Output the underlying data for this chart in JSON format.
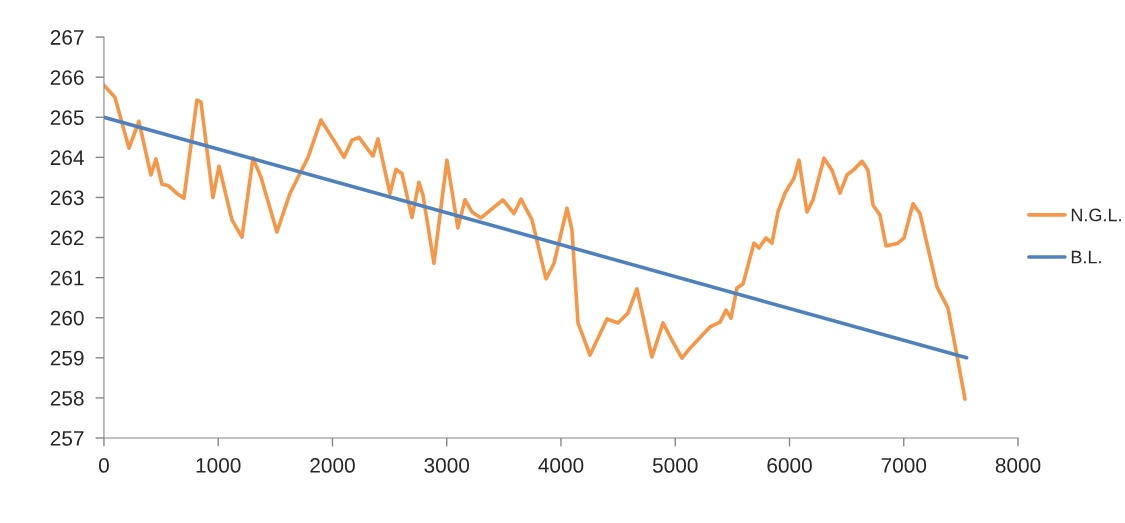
{
  "chart_data": {
    "type": "line",
    "xlim": [
      0,
      8000
    ],
    "ylim": [
      257,
      267
    ],
    "xticks": [
      0,
      1000,
      2000,
      3000,
      4000,
      5000,
      6000,
      7000,
      8000
    ],
    "yticks": [
      257,
      258,
      259,
      260,
      261,
      262,
      263,
      264,
      265,
      266,
      267
    ],
    "grid": false,
    "legend": "right",
    "marker": "none",
    "line_style": "solid",
    "series": [
      {
        "name": "N.G.L.",
        "color": "#f79646",
        "x": [
          0,
          96,
          219,
          306,
          411,
          455,
          508,
          560,
          639,
          700,
          814,
          849,
          954,
          1007,
          1120,
          1208,
          1304,
          1374,
          1514,
          1628,
          1786,
          1899,
          2022,
          2101,
          2171,
          2232,
          2354,
          2398,
          2503,
          2556,
          2608,
          2696,
          2757,
          2792,
          2888,
          3002,
          3098,
          3160,
          3221,
          3300,
          3492,
          3589,
          3650,
          3746,
          3869,
          3939,
          4053,
          4096,
          4149,
          4254,
          4403,
          4499,
          4587,
          4665,
          4796,
          4893,
          4980,
          5059,
          5129,
          5304,
          5392,
          5444,
          5488,
          5540,
          5593,
          5689,
          5733,
          5794,
          5847,
          5899,
          5961,
          6039,
          6083,
          6153,
          6206,
          6302,
          6372,
          6442,
          6503,
          6565,
          6635,
          6687,
          6731,
          6792,
          6845,
          6950,
          7002,
          7081,
          7142,
          7291,
          7387,
          7457,
          7536
        ],
        "values": [
          265.8,
          265.5,
          264.23,
          264.9,
          263.56,
          263.96,
          263.33,
          263.3,
          263.1,
          262.98,
          265.43,
          265.38,
          263.0,
          263.78,
          262.44,
          262.01,
          263.98,
          263.51,
          262.14,
          263.1,
          264.0,
          264.93,
          264.38,
          264.0,
          264.43,
          264.5,
          264.03,
          264.46,
          263.1,
          263.7,
          263.6,
          262.5,
          263.38,
          263.06,
          261.36,
          263.93,
          262.24,
          262.94,
          262.64,
          262.49,
          262.94,
          262.6,
          262.96,
          262.44,
          260.97,
          261.36,
          262.73,
          262.19,
          259.87,
          259.07,
          259.97,
          259.87,
          260.12,
          260.72,
          259.02,
          259.87,
          259.39,
          258.99,
          259.24,
          259.77,
          259.89,
          260.19,
          259.99,
          260.74,
          260.84,
          261.86,
          261.74,
          261.99,
          261.86,
          262.64,
          263.11,
          263.48,
          263.93,
          262.64,
          262.94,
          263.98,
          263.68,
          263.11,
          263.56,
          263.7,
          263.9,
          263.68,
          262.81,
          262.56,
          261.79,
          261.86,
          261.99,
          262.84,
          262.6,
          260.77,
          260.24,
          259.19,
          257.97
        ]
      },
      {
        "name": "B.L.",
        "color": "#4f81bd",
        "x": [
          0,
          7550
        ],
        "values": [
          265,
          259
        ]
      }
    ]
  }
}
